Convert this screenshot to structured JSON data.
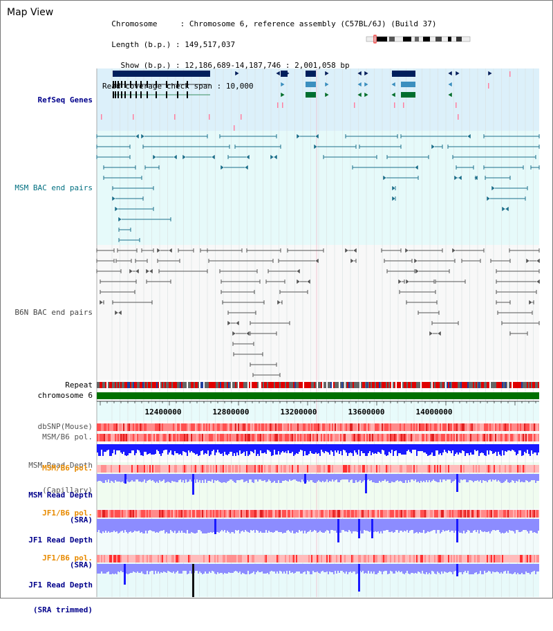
{
  "title": "Map View",
  "info": {
    "chromosome_key": "Chromosome",
    "chromosome_val": "Chromosome 6, reference assembly (C57BL/6J) (Build 37)",
    "length_key": "Length (b.p.)",
    "length_val": "149,517,037",
    "show_key": "Show (b.p.)",
    "show_val": "12,186,689-14,187,746 : 2,001,058 bp",
    "coverage_key": "Read coverage check span",
    "coverage_val": "10,000"
  },
  "tracks": {
    "refseq": "RefSeq Genes",
    "msm_bac": "MSM BAC end pairs",
    "b6n_bac": "B6N BAC end pairs",
    "repeat": "Repeat",
    "chromosome": "chromosome 6",
    "dbsnp": "dbSNP(Mouse)",
    "msm_b6_pol_1": "MSM/B6 pol.",
    "msm_read_depth_cap_1": "MSM Read Depth",
    "msm_read_depth_cap_2": "(Capillary)",
    "msm_b6_pol_2": "MSM/B6 pol.",
    "msm_read_depth_sra_1": "MSM Read Depth",
    "msm_read_depth_sra_2": "(SRA)",
    "jf1_b6_pol_1": "JF1/B6 pol.",
    "jf1_read_depth_sra_1": "JF1 Read Depth",
    "jf1_read_depth_sra_2": "(SRA)",
    "jf1_b6_pol_2": "JF1/B6 pol.",
    "jf1_read_depth_trim_1": "JF1 Read Depth",
    "jf1_read_depth_trim_2": "(SRA trimmed)"
  },
  "axis_ticks": [
    "12400000",
    "12800000",
    "13200000",
    "13600000",
    "14000000"
  ],
  "colors": {
    "refseq_bg": "#dcf0fa",
    "msm_bg": "#e6fafa",
    "b6n_bg": "#f8f8f8",
    "gene_dark": "#001f5c",
    "gene_mid": "#3b8fbf",
    "gene_green": "#006e2e",
    "msm_line": "#1a6f8a",
    "b6n_line": "#555555",
    "repeat_red": "#e00000",
    "chromosome_green": "#007000",
    "depth_blue": "#1a1aff",
    "depth_light": "#8c8cff",
    "pol_red": "#ff3030",
    "pol_light": "#ffbcbc"
  }
}
